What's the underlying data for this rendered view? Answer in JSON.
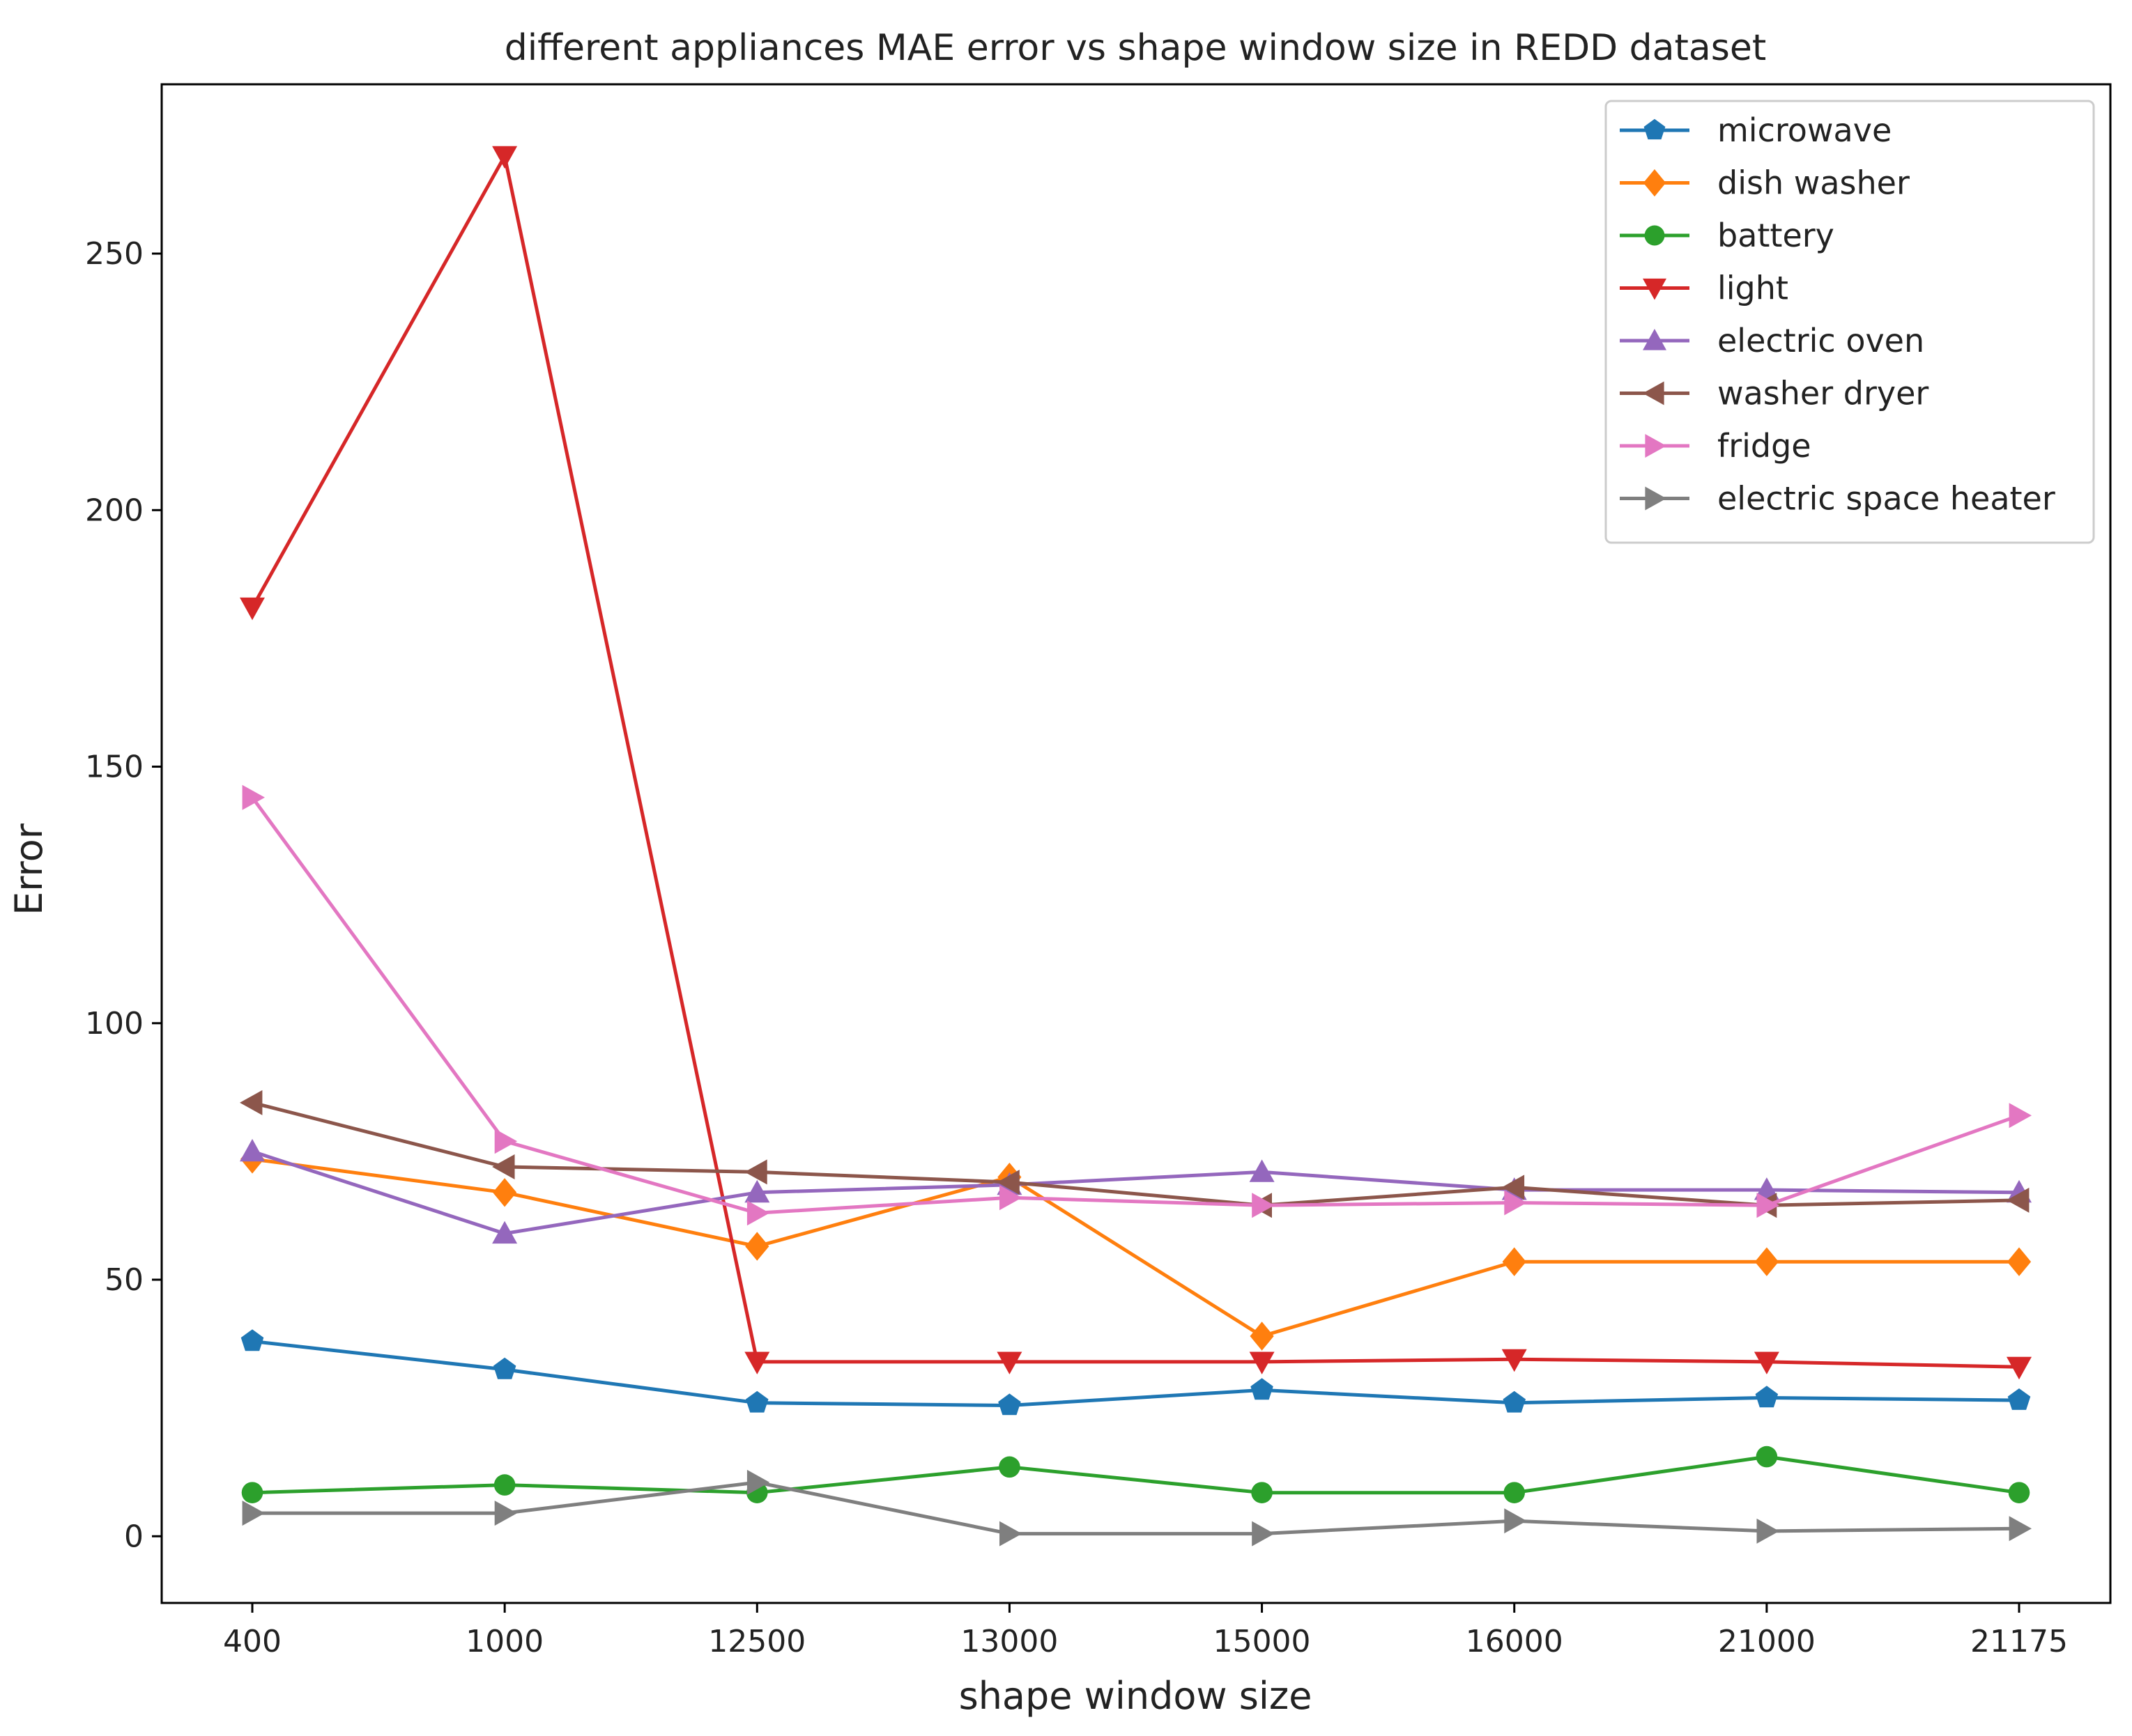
{
  "chart_data": {
    "type": "line",
    "title": "different appliances MAE error vs shape window size in REDD dataset",
    "xlabel": "shape window size",
    "ylabel": "Error",
    "categories": [
      "400",
      "1000",
      "12500",
      "13000",
      "15000",
      "16000",
      "21000",
      "21175"
    ],
    "ylim": [
      -13,
      283
    ],
    "yticks": [
      0,
      50,
      100,
      150,
      200,
      250
    ],
    "grid": false,
    "legend_position": "top-right",
    "series": [
      {
        "name": "microwave",
        "color": "#1f77b4",
        "marker": "pentagon",
        "values": [
          38,
          32.5,
          26,
          25.5,
          28.5,
          26,
          27,
          26.5
        ]
      },
      {
        "name": "dish washer",
        "color": "#ff7f0e",
        "marker": "diamond",
        "values": [
          73.5,
          67,
          56.5,
          70,
          39,
          53.5,
          53.5,
          53.5
        ]
      },
      {
        "name": "battery",
        "color": "#2ca02c",
        "marker": "circle",
        "values": [
          8.5,
          10,
          8.5,
          13.5,
          8.5,
          8.5,
          15.5,
          8.5
        ]
      },
      {
        "name": "light",
        "color": "#d62728",
        "marker": "triangle-down",
        "values": [
          181,
          269,
          34,
          34,
          34,
          34.5,
          34,
          33
        ]
      },
      {
        "name": "electric oven",
        "color": "#9467bd",
        "marker": "triangle-up",
        "values": [
          75,
          59,
          67,
          68.5,
          71,
          67.5,
          67.5,
          67
        ]
      },
      {
        "name": "washer dryer",
        "color": "#8c564b",
        "marker": "triangle-left",
        "values": [
          84.5,
          72,
          71,
          69,
          64.5,
          68,
          64.5,
          65.5
        ]
      },
      {
        "name": "fridge",
        "color": "#e377c2",
        "marker": "triangle-right",
        "values": [
          144,
          77,
          63,
          66,
          64.5,
          65,
          64.5,
          82
        ]
      },
      {
        "name": "electric space heater",
        "color": "#7f7f7f",
        "marker": "triangle-right",
        "values": [
          4.5,
          4.5,
          10.5,
          0.5,
          0.5,
          3,
          1,
          1.5
        ]
      }
    ]
  }
}
